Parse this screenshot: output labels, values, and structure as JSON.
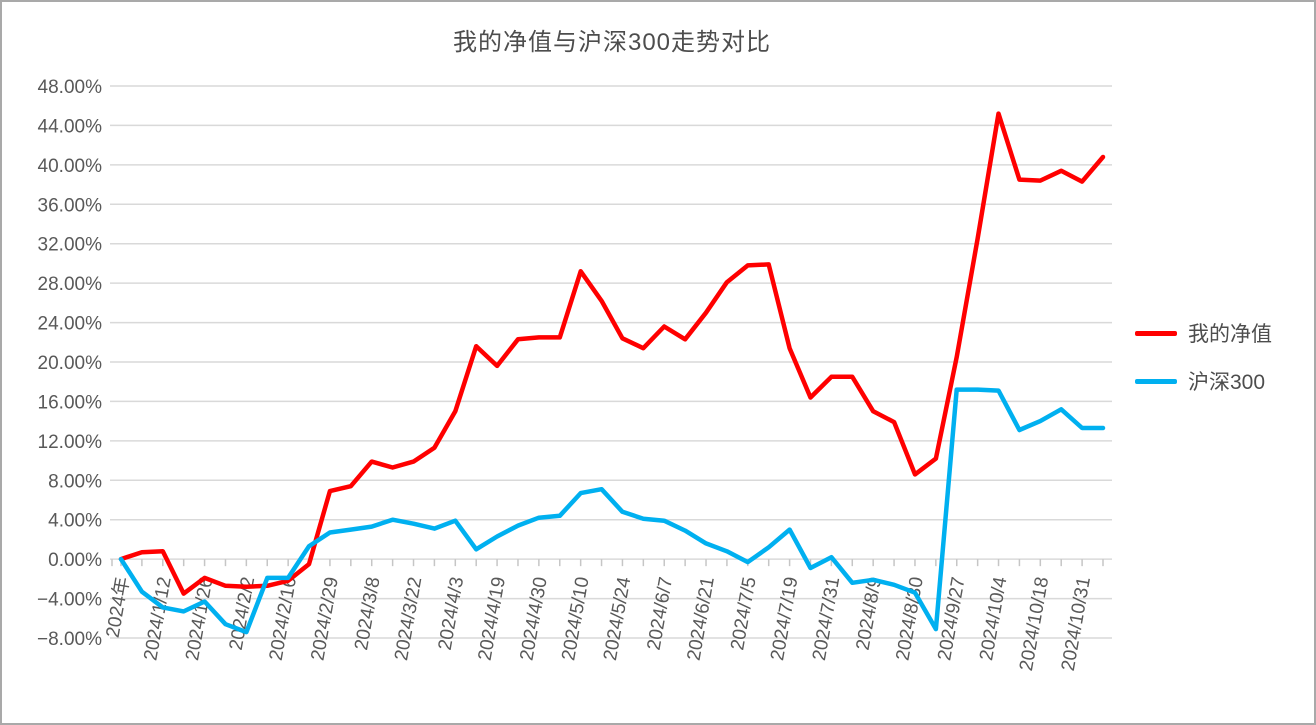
{
  "window": {
    "background": "#ffffff",
    "border_color": "#a9a9a9"
  },
  "chart_data": {
    "type": "line",
    "title": "我的净值与沪深300走势对比",
    "xlabel": "",
    "ylabel": "",
    "ylim": [
      -8,
      48
    ],
    "grid": "horizontal",
    "gridline_color": "#d9d9d9",
    "tick_color": "#c6c6c6",
    "axis_text_color": "#595959",
    "legend_position": "right",
    "y_ticks": [
      {
        "value": 48,
        "label": "48.00%"
      },
      {
        "value": 44,
        "label": "44.00%"
      },
      {
        "value": 40,
        "label": "40.00%"
      },
      {
        "value": 36,
        "label": "36.00%"
      },
      {
        "value": 32,
        "label": "32.00%"
      },
      {
        "value": 28,
        "label": "28.00%"
      },
      {
        "value": 24,
        "label": "24.00%"
      },
      {
        "value": 20,
        "label": "20.00%"
      },
      {
        "value": 16,
        "label": "16.00%"
      },
      {
        "value": 12,
        "label": "12.00%"
      },
      {
        "value": 8,
        "label": "8.00%"
      },
      {
        "value": 4,
        "label": "4.00%"
      },
      {
        "value": 0,
        "label": "0.00%"
      },
      {
        "value": -4,
        "label": "−4.00%"
      },
      {
        "value": -8,
        "label": "−8.00%"
      }
    ],
    "x_tick_labels": [
      "2024年",
      "2024/1/12",
      "2024/1/26",
      "2024/2/2",
      "2024/2/16",
      "2024/2/29",
      "2024/3/8",
      "2024/3/22",
      "2024/4/3",
      "2024/4/19",
      "2024/4/30",
      "2024/5/10",
      "2024/5/24",
      "2024/6/7",
      "2024/6/21",
      "2024/7/5",
      "2024/7/19",
      "2024/7/31",
      "2024/8/9",
      "2024/8/30",
      "2024/9/27",
      "2024/10/4",
      "2024/10/18",
      "2024/10/31"
    ],
    "points_per_label": 2,
    "series": [
      {
        "name": "我的净值",
        "color": "#ff0000",
        "values": [
          0.0,
          0.7,
          0.8,
          -3.5,
          -1.9,
          -2.7,
          -2.8,
          -2.7,
          -2.2,
          -0.5,
          6.9,
          7.4,
          9.9,
          9.3,
          9.9,
          11.3,
          15.0,
          21.6,
          19.6,
          22.3,
          22.5,
          22.5,
          29.2,
          26.2,
          22.4,
          21.4,
          23.6,
          22.3,
          25.0,
          28.1,
          29.8,
          29.9,
          21.4,
          16.4,
          18.5,
          18.5,
          15.0,
          13.9,
          8.6,
          10.2,
          20.5,
          32.5,
          45.2,
          38.5,
          38.4,
          39.4,
          38.3,
          40.8
        ]
      },
      {
        "name": "沪深300",
        "color": "#00b0f0",
        "values": [
          0.0,
          -3.3,
          -4.9,
          -5.3,
          -4.3,
          -6.6,
          -7.4,
          -1.9,
          -1.9,
          1.3,
          2.7,
          3.0,
          3.3,
          4.0,
          3.6,
          3.1,
          3.9,
          1.0,
          2.3,
          3.4,
          4.2,
          4.4,
          6.7,
          7.1,
          4.8,
          4.1,
          3.9,
          2.9,
          1.6,
          0.8,
          -0.3,
          1.2,
          3.0,
          -0.9,
          0.2,
          -2.4,
          -2.1,
          -2.6,
          -3.4,
          -7.1,
          17.2,
          17.2,
          17.1,
          13.1,
          14.0,
          15.2,
          13.3,
          13.3
        ]
      }
    ]
  }
}
